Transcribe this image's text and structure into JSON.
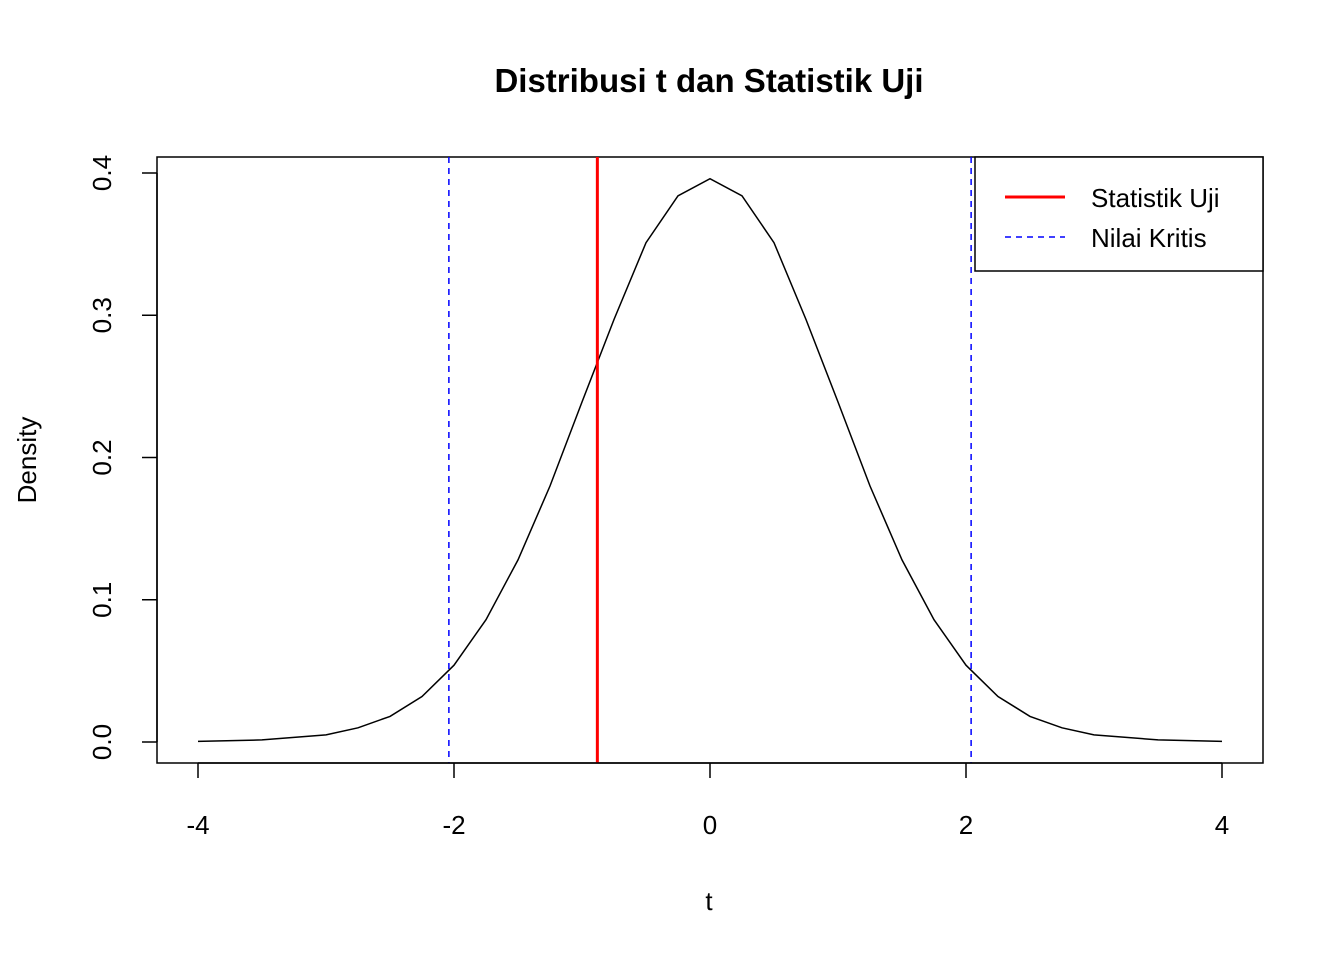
{
  "chart_data": {
    "type": "line",
    "title": "Distribusi t dan Statistik Uji",
    "xlabel": "t",
    "ylabel": "Density",
    "xlim": [
      -4,
      4
    ],
    "ylim": [
      0,
      0.4
    ],
    "x_ticks": [
      "-4",
      "-2",
      "0",
      "2",
      "4"
    ],
    "y_ticks": [
      "0.0",
      "0.1",
      "0.2",
      "0.3",
      "0.4"
    ],
    "grid": false,
    "legend_position": "top-right",
    "series": [
      {
        "kind": "density-curve",
        "color": "#000000",
        "x": [
          -4.0,
          -3.5,
          -3.0,
          -2.75,
          -2.5,
          -2.25,
          -2.0,
          -1.75,
          -1.5,
          -1.25,
          -1.0,
          -0.75,
          -0.5,
          -0.25,
          0.0,
          0.25,
          0.5,
          0.75,
          1.0,
          1.25,
          1.5,
          1.75,
          2.0,
          2.25,
          2.5,
          2.75,
          3.0,
          3.5,
          4.0
        ],
        "y": [
          0.0004,
          0.0015,
          0.005,
          0.01,
          0.018,
          0.032,
          0.054,
          0.086,
          0.128,
          0.18,
          0.239,
          0.297,
          0.351,
          0.384,
          0.396,
          0.384,
          0.351,
          0.297,
          0.239,
          0.18,
          0.128,
          0.086,
          0.054,
          0.032,
          0.018,
          0.01,
          0.005,
          0.0015,
          0.0004
        ]
      },
      {
        "name": "Statistik Uji",
        "kind": "vline",
        "x": -0.88,
        "color": "#ff0000",
        "dash": "solid"
      },
      {
        "name": "Nilai Kritis",
        "kind": "vline",
        "x": [
          -2.04,
          2.04
        ],
        "color": "#0000ff",
        "dash": "dashed"
      }
    ]
  }
}
